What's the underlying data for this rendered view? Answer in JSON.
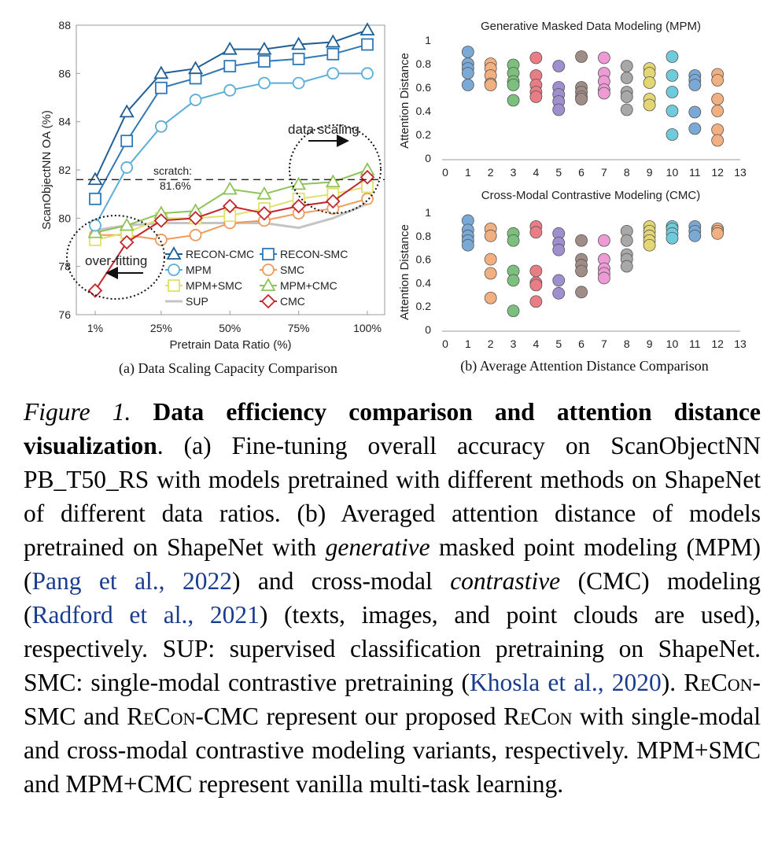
{
  "chart_data": [
    {
      "type": "line",
      "subtitle": "(a) Data Scaling Capacity Comparison",
      "xlabel": "Pretrain Data Ratio (%)",
      "ylabel": "ScanObjectNN OA (%)",
      "x_ticks": [
        "1%",
        "25%",
        "50%",
        "75%",
        "100%"
      ],
      "x": [
        1,
        12.5,
        25,
        37.5,
        50,
        62.5,
        75,
        87.5,
        100
      ],
      "ylim": [
        76,
        88
      ],
      "y_ticks": [
        "76",
        "78",
        "80",
        "82",
        "84",
        "86",
        "88"
      ],
      "grid": false,
      "legend_position": "bottom-right",
      "baseline": {
        "value": 81.6,
        "label_line1": "scratch:",
        "label_line2": "81.6%"
      },
      "annotations": {
        "data_scaling": "data scaling",
        "over_fitting": "over-fitting"
      },
      "series": [
        {
          "name": "RECON-CMC",
          "color": "#1f5f96",
          "marker": "triangle",
          "values": [
            81.6,
            84.4,
            86.0,
            86.2,
            87.0,
            87.0,
            87.2,
            87.3,
            87.8
          ]
        },
        {
          "name": "RECON-SMC",
          "color": "#2f78b8",
          "marker": "square",
          "values": [
            80.8,
            83.2,
            85.4,
            85.8,
            86.3,
            86.5,
            86.6,
            86.8,
            87.2
          ]
        },
        {
          "name": "MPM",
          "color": "#5aaed8",
          "marker": "circle",
          "values": [
            79.7,
            82.1,
            83.8,
            84.9,
            85.3,
            85.6,
            85.6,
            86.0,
            86.0
          ]
        },
        {
          "name": "SMC",
          "color": "#ef9a5a",
          "marker": "circle",
          "values": [
            79.3,
            79.3,
            79.1,
            79.3,
            79.8,
            79.9,
            80.2,
            80.4,
            80.8
          ]
        },
        {
          "name": "MPM+SMC",
          "color": "#e2e06a",
          "marker": "square",
          "values": [
            79.1,
            79.4,
            80.0,
            80.0,
            80.1,
            80.4,
            80.8,
            81.0,
            81.3
          ]
        },
        {
          "name": "MPM+CMC",
          "color": "#8fc35a",
          "marker": "triangle",
          "values": [
            79.4,
            79.7,
            80.2,
            80.3,
            81.2,
            81.0,
            81.4,
            81.5,
            82.0
          ]
        },
        {
          "name": "SUP",
          "color": "#c4c4c4",
          "marker": "none",
          "values": [
            79.5,
            79.7,
            79.8,
            79.8,
            79.8,
            79.8,
            79.6,
            80.0,
            80.6
          ]
        },
        {
          "name": "CMC",
          "color": "#c1272d",
          "marker": "diamond",
          "values": [
            77.0,
            79.0,
            79.9,
            80.0,
            80.5,
            80.2,
            80.5,
            80.7,
            81.7
          ]
        }
      ]
    },
    {
      "type": "scatter",
      "title": "Generative Masked Data Modeling (MPM)",
      "ylabel": "Attention Distance",
      "x_ticks": [
        "0",
        "1",
        "2",
        "3",
        "4",
        "5",
        "6",
        "7",
        "8",
        "9",
        "10",
        "11",
        "12",
        "13"
      ],
      "y_ticks": [
        "0",
        "0.2",
        "0.4",
        "0.6",
        "0.8",
        "1"
      ],
      "xlim": [
        0,
        13
      ],
      "ylim": [
        0,
        1
      ],
      "points_by_layer": [
        {
          "x": 1,
          "color": "#7aa9d6",
          "y": [
            0.9,
            0.8,
            0.76,
            0.72,
            0.62
          ]
        },
        {
          "x": 2,
          "color": "#f2b080",
          "y": [
            0.8,
            0.76,
            0.7,
            0.63,
            0.62
          ]
        },
        {
          "x": 3,
          "color": "#7cc07e",
          "y": [
            0.79,
            0.72,
            0.65,
            0.62,
            0.49
          ]
        },
        {
          "x": 4,
          "color": "#e87d86",
          "y": [
            0.85,
            0.7,
            0.62,
            0.56,
            0.52
          ]
        },
        {
          "x": 5,
          "color": "#9f8fce",
          "y": [
            0.78,
            0.6,
            0.54,
            0.48,
            0.41
          ]
        },
        {
          "x": 6,
          "color": "#a08d88",
          "y": [
            0.86,
            0.6,
            0.56,
            0.52,
            0.5
          ]
        },
        {
          "x": 7,
          "color": "#ee9ad4",
          "y": [
            0.85,
            0.72,
            0.65,
            0.58,
            0.55
          ]
        },
        {
          "x": 8,
          "color": "#a8a8a8",
          "y": [
            0.78,
            0.68,
            0.56,
            0.52,
            0.41
          ]
        },
        {
          "x": 9,
          "color": "#e4d773",
          "y": [
            0.76,
            0.72,
            0.64,
            0.5,
            0.45
          ]
        },
        {
          "x": 10,
          "color": "#6ecbdc",
          "y": [
            0.86,
            0.7,
            0.56,
            0.4,
            0.2
          ]
        },
        {
          "x": 11,
          "color": "#7aa9d6",
          "y": [
            0.7,
            0.66,
            0.62,
            0.39,
            0.25
          ]
        },
        {
          "x": 12,
          "color": "#f2b080",
          "y": [
            0.71,
            0.66,
            0.5,
            0.4,
            0.24,
            0.15
          ]
        }
      ]
    },
    {
      "type": "scatter",
      "title": "Cross-Modal Contrastive Modeling (CMC)",
      "subtitle": "(b) Average Attention Distance Comparison",
      "ylabel": "Attention Distance",
      "x_ticks": [
        "0",
        "1",
        "2",
        "3",
        "4",
        "5",
        "6",
        "7",
        "8",
        "9",
        "10",
        "11",
        "12",
        "13"
      ],
      "y_ticks": [
        "0",
        "0.2",
        "0.4",
        "0.6",
        "0.8",
        "1"
      ],
      "xlim": [
        0,
        13
      ],
      "ylim": [
        0,
        1
      ],
      "points_by_layer": [
        {
          "x": 1,
          "color": "#7aa9d6",
          "y": [
            0.93,
            0.85,
            0.8,
            0.76,
            0.72
          ]
        },
        {
          "x": 2,
          "color": "#f2b080",
          "y": [
            0.86,
            0.8,
            0.6,
            0.48,
            0.27
          ]
        },
        {
          "x": 3,
          "color": "#7cc07e",
          "y": [
            0.82,
            0.76,
            0.5,
            0.42,
            0.16
          ]
        },
        {
          "x": 4,
          "color": "#e87d86",
          "y": [
            0.88,
            0.83,
            0.5,
            0.4,
            0.38,
            0.24
          ]
        },
        {
          "x": 5,
          "color": "#9f8fce",
          "y": [
            0.82,
            0.74,
            0.68,
            0.42,
            0.31
          ]
        },
        {
          "x": 6,
          "color": "#a08d88",
          "y": [
            0.76,
            0.6,
            0.55,
            0.5,
            0.32
          ]
        },
        {
          "x": 7,
          "color": "#ee9ad4",
          "y": [
            0.76,
            0.6,
            0.52,
            0.48,
            0.44
          ]
        },
        {
          "x": 8,
          "color": "#a8a8a8",
          "y": [
            0.84,
            0.76,
            0.64,
            0.6,
            0.54
          ]
        },
        {
          "x": 9,
          "color": "#e4d773",
          "y": [
            0.88,
            0.84,
            0.8,
            0.76,
            0.72
          ]
        },
        {
          "x": 10,
          "color": "#6ecbdc",
          "y": [
            0.88,
            0.86,
            0.82,
            0.78
          ]
        },
        {
          "x": 11,
          "color": "#7aa9d6",
          "y": [
            0.88,
            0.84,
            0.8
          ]
        },
        {
          "x": 12,
          "color": "#f2b080",
          "y": [
            0.86,
            0.84,
            0.82
          ]
        }
      ]
    }
  ],
  "caption": {
    "label": "Figure 1.",
    "title": "Data efficiency comparison and attention distance visualization",
    "t1": ". (a) Fine-tuning overall accuracy on ScanObjectNN PB_T50_RS with models pretrained with different methods on ShapeNet of different data ratios.  (b) Averaged attention distance of models pretrained on ShapeNet with ",
    "generative": "generative",
    "t2": " masked point modeling (MPM) (",
    "cite1": "Pang et al., 2022",
    "t3": ") and cross-modal ",
    "contrastive": "contrastive",
    "t4": " (CMC) modeling (",
    "cite2": "Radford et al., 2021",
    "t5": ") (texts, images, and point clouds are used), respectively. SUP: supervised classification pretraining on ShapeNet. SMC: single-modal contrastive pretraining (",
    "cite3": "Khosla et al., 2020",
    "t6": ").  ",
    "recon1": "ReCon",
    "t7": "-SMC and ",
    "recon2": "ReCon",
    "t8": "-CMC represent our proposed ",
    "recon3": "ReCon",
    "t9": " with single-modal and cross-modal contrastive modeling variants, respectively. MPM+SMC and MPM+CMC represent vanilla multi-task learning."
  }
}
